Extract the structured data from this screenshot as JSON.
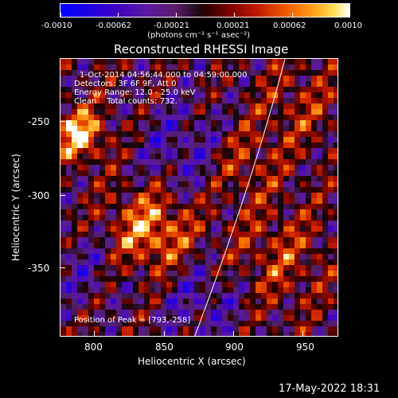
{
  "colorbar": {
    "tick_labels": [
      "-0.0010",
      "-0.00062",
      "-0.00021",
      "0.00021",
      "0.00062",
      "0.0010"
    ],
    "units": "(photons cm⁻² s⁻¹ asec⁻²)"
  },
  "title": "Reconstructed RHESSI Image",
  "info": {
    "line1": "1-Oct-2014 04:56:44.000 to 04:59:00.000",
    "line2": "Detectors: 3F 6F 9F, Att 0",
    "line3": "Energy Range: 12.0 - 25.0 keV",
    "line4": "Clean    Total counts: 732.",
    "peak": "Position of Peak = [793,-258]"
  },
  "axes": {
    "xlabel": "Heliocentric X (arcsec)",
    "ylabel": "Heliocentric Y (arcsec)",
    "xticks": [
      "800",
      "850",
      "900",
      "950"
    ],
    "yticks": [
      "-250",
      "-300",
      "-350"
    ],
    "xlim": [
      778,
      971
    ],
    "ylim": [
      -396,
      -198
    ]
  },
  "timestamp": "17-May-2022 18:31",
  "colors": {
    "background": "#000000",
    "foreground": "#ffffff"
  }
}
